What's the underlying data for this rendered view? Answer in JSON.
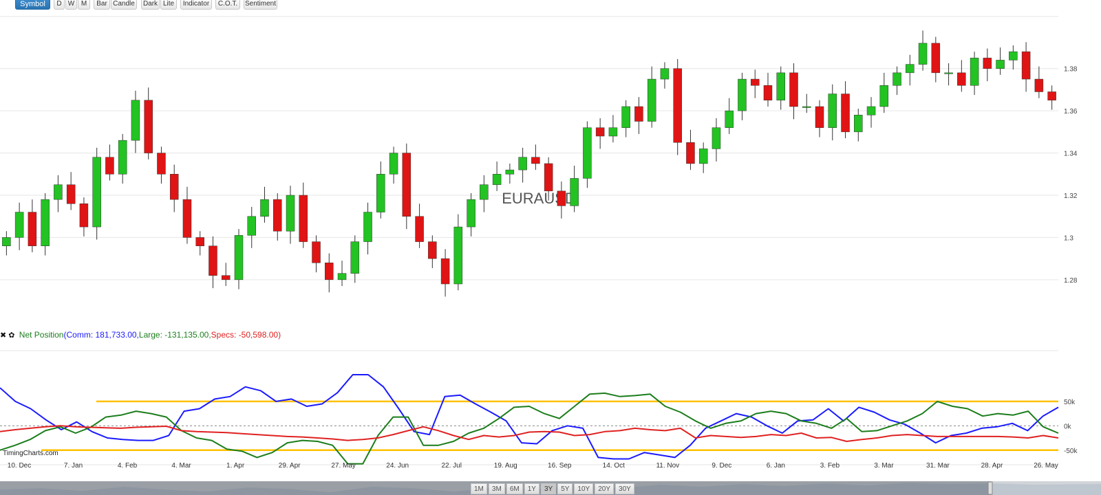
{
  "toolbar": {
    "symbol_label": "Symbol",
    "timeframes": [
      "D",
      "W",
      "M"
    ],
    "chart_types": [
      "Bar",
      "Candle"
    ],
    "themes": [
      "Dark",
      "Lite"
    ],
    "indicator_label": "Indicator",
    "cot_label": "C.O.T.",
    "sentiment_label": "Sentiment"
  },
  "legend": {
    "name": "Net Position",
    "open": "(",
    "comm_label": "Comm: ",
    "comm_value": "181,733.00",
    "comma1": ",",
    "large_label": "Large: ",
    "large_value": "-131,135.00",
    "comma2": ",",
    "specs_label": "Specs: ",
    "specs_value": "-50,598.00",
    "close": ")"
  },
  "watermark": "TimingCharts.com",
  "range_buttons": [
    "1M",
    "3M",
    "6M",
    "1Y",
    "3Y",
    "5Y",
    "10Y",
    "20Y",
    "30Y"
  ],
  "active_range": "3Y",
  "colors": {
    "up": "#22c322",
    "down": "#e01414",
    "comm": "#1a1aff",
    "large": "#1b7d1b",
    "specs": "#e02020",
    "level": "#ffc000",
    "primary": "#2a73b1"
  },
  "chart_data": [
    {
      "type": "candlestick",
      "title": "EURAUSD",
      "ylim": [
        1.264,
        1.404
      ],
      "y_ticks": [
        "1.28",
        "1.3",
        "1.32",
        "1.34",
        "1.36",
        "1.38"
      ],
      "x_tick_labels": [
        "10. Dec",
        "7. Jan",
        "4. Feb",
        "4. Mar",
        "1. Apr",
        "29. Apr",
        "27. May",
        "24. Jun",
        "22. Jul",
        "19. Aug",
        "16. Sep",
        "14. Oct",
        "11. Nov",
        "9. Dec",
        "6. Jan",
        "3. Feb",
        "3. Mar",
        "31. Mar",
        "28. Apr",
        "26. May"
      ],
      "close": [
        1.3,
        1.312,
        1.296,
        1.318,
        1.325,
        1.316,
        1.305,
        1.338,
        1.33,
        1.346,
        1.365,
        1.34,
        1.33,
        1.318,
        1.3,
        1.296,
        1.282,
        1.28,
        1.301,
        1.31,
        1.318,
        1.303,
        1.32,
        1.298,
        1.288,
        1.28,
        1.283,
        1.298,
        1.312,
        1.33,
        1.34,
        1.31,
        1.298,
        1.29,
        1.278,
        1.305,
        1.318,
        1.325,
        1.33,
        1.332,
        1.338,
        1.335,
        1.322,
        1.315,
        1.328,
        1.352,
        1.348,
        1.352,
        1.362,
        1.355,
        1.375,
        1.38,
        1.345,
        1.335,
        1.342,
        1.352,
        1.36,
        1.375,
        1.372,
        1.365,
        1.378,
        1.362,
        1.362,
        1.352,
        1.368,
        1.35,
        1.358,
        1.362,
        1.372,
        1.378,
        1.382,
        1.392,
        1.378,
        1.378,
        1.372,
        1.385,
        1.38,
        1.384,
        1.388,
        1.375,
        1.369,
        1.365
      ]
    },
    {
      "type": "line",
      "title": "Net Position",
      "ylim": [
        -80000,
        160000
      ],
      "y_ticks": [
        "50k",
        "0k",
        "-50k"
      ],
      "reference_lines": [
        50000,
        -50000
      ],
      "x_tick_labels": [
        "10. Dec",
        "7. Jan",
        "4. Feb",
        "4. Mar",
        "1. Apr",
        "29. Apr",
        "27. May",
        "24. Jun",
        "22. Jul",
        "19. Aug",
        "16. Sep",
        "14. Oct",
        "11. Nov",
        "9. Dec",
        "6. Jan",
        "3. Feb",
        "3. Mar",
        "31. Mar",
        "28. Apr",
        "26. May"
      ],
      "series": [
        {
          "name": "Comm",
          "values": [
            78000,
            50000,
            35000,
            12000,
            -8000,
            8000,
            -12000,
            -25000,
            -28000,
            -30000,
            -30000,
            -20000,
            30000,
            35000,
            55000,
            60000,
            80000,
            72000,
            50000,
            55000,
            40000,
            45000,
            68000,
            105000,
            105000,
            80000,
            35000,
            -12000,
            -18000,
            60000,
            63000,
            45000,
            28000,
            10000,
            -35000,
            -37000,
            -10000,
            0,
            -5000,
            -65000,
            -68000,
            -68000,
            -55000,
            -60000,
            -65000,
            -40000,
            -5000,
            10000,
            25000,
            18000,
            0,
            -15000,
            10000,
            12000,
            35000,
            10000,
            38000,
            28000,
            12000,
            3000,
            -15000,
            -35000,
            -20000,
            -15000,
            -5000,
            -2000,
            5000,
            -10000,
            20000,
            38000
          ]
        },
        {
          "name": "Large",
          "values": [
            -50000,
            -40000,
            -28000,
            -10000,
            -2000,
            -15000,
            -3000,
            18000,
            22000,
            30000,
            25000,
            18000,
            -10000,
            -25000,
            -30000,
            -48000,
            -52000,
            -65000,
            -55000,
            -35000,
            -30000,
            -32000,
            -40000,
            -78000,
            -78000,
            -20000,
            18000,
            18000,
            -40000,
            -40000,
            -32000,
            -15000,
            -5000,
            15000,
            38000,
            40000,
            25000,
            15000,
            40000,
            65000,
            67000,
            60000,
            62000,
            65000,
            40000,
            28000,
            10000,
            -5000,
            5000,
            10000,
            25000,
            30000,
            25000,
            10000,
            5000,
            -5000,
            15000,
            -12000,
            -10000,
            0,
            10000,
            25000,
            50000,
            40000,
            35000,
            20000,
            25000,
            22000,
            30000,
            -2000,
            -15000
          ]
        },
        {
          "name": "Specs",
          "values": [
            -12000,
            -8000,
            -5000,
            -2000,
            0,
            -2000,
            -3000,
            -4000,
            -5000,
            -3000,
            -2000,
            -1000,
            -10000,
            -12000,
            -13000,
            -14000,
            -16000,
            -18000,
            -20000,
            -22000,
            -23000,
            -25000,
            -27000,
            -30000,
            -28000,
            -25000,
            -18000,
            -10000,
            -2000,
            -10000,
            -20000,
            -28000,
            -20000,
            -23000,
            -20000,
            -13000,
            -12000,
            -13000,
            -20000,
            -18000,
            -12000,
            -10000,
            -5000,
            -8000,
            -10000,
            -5000,
            -25000,
            -20000,
            -22000,
            -24000,
            -22000,
            -18000,
            -20000,
            -15000,
            -25000,
            -24000,
            -32000,
            -28000,
            -25000,
            -20000,
            -18000,
            -20000,
            -22000,
            -22000,
            -22000,
            -22000,
            -22000,
            -23000,
            -25000,
            -20000,
            -25000
          ]
        }
      ]
    }
  ]
}
